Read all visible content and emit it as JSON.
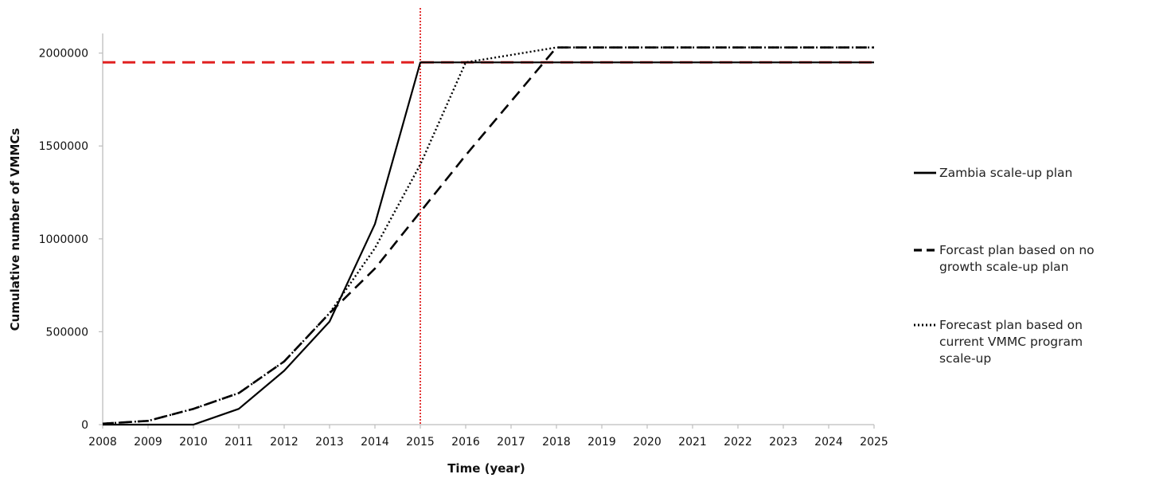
{
  "chart_data": {
    "type": "line",
    "title": "",
    "xlabel": "Time (year)",
    "ylabel": "Cumulative number of VMMCs",
    "x": [
      2008,
      2009,
      2010,
      2011,
      2012,
      2013,
      2014,
      2015,
      2016,
      2017,
      2018,
      2019,
      2020,
      2021,
      2022,
      2023,
      2024,
      2025
    ],
    "xlim": [
      2008,
      2025
    ],
    "ylim": [
      0,
      2200000
    ],
    "yticks": [
      0,
      500000,
      1000000,
      1500000,
      2000000
    ],
    "ytick_labels": [
      "0",
      "500000",
      "1000000",
      "1500000",
      "2000000"
    ],
    "xtick_labels": [
      "2008",
      "2009",
      "2010",
      "2011",
      "2012",
      "2013",
      "2014",
      "2015",
      "2016",
      "2017",
      "2018",
      "2019",
      "2020",
      "2021",
      "2022",
      "2023",
      "2024",
      "2025"
    ],
    "grid": false,
    "legend_position": "right",
    "series": [
      {
        "name": "Zambia scale-up plan",
        "style": "solid",
        "color": "#000000",
        "points": [
          [
            2008,
            0
          ],
          [
            2009,
            0
          ],
          [
            2010,
            0
          ],
          [
            2011,
            85000
          ],
          [
            2012,
            290000
          ],
          [
            2013,
            555000
          ],
          [
            2014,
            1080000
          ],
          [
            2015,
            1950000
          ],
          [
            2016,
            1950000
          ],
          [
            2017,
            1950000
          ],
          [
            2018,
            1950000
          ],
          [
            2019,
            1950000
          ],
          [
            2020,
            1950000
          ],
          [
            2021,
            1950000
          ],
          [
            2022,
            1950000
          ],
          [
            2023,
            1950000
          ],
          [
            2024,
            1950000
          ],
          [
            2025,
            1950000
          ]
        ]
      },
      {
        "name": "Forcast plan based on no growth scale-up plan",
        "legend_lines": [
          "Forcast plan based on no",
          "growth scale-up plan"
        ],
        "style": "dashed",
        "color": "#000000",
        "points": [
          [
            2008,
            5000
          ],
          [
            2009,
            20000
          ],
          [
            2010,
            85000
          ],
          [
            2011,
            170000
          ],
          [
            2012,
            340000
          ],
          [
            2013,
            600000
          ],
          [
            2014,
            840000
          ],
          [
            2015,
            1145000
          ],
          [
            2016,
            1450000
          ],
          [
            2017,
            1740000
          ],
          [
            2018,
            2030000
          ],
          [
            2019,
            2030000
          ],
          [
            2020,
            2030000
          ],
          [
            2021,
            2030000
          ],
          [
            2022,
            2030000
          ],
          [
            2023,
            2030000
          ],
          [
            2024,
            2030000
          ],
          [
            2025,
            2030000
          ]
        ]
      },
      {
        "name": "Forecast plan based on current VMMC program scale-up",
        "legend_lines": [
          "Forecast plan based on",
          "current VMMC program",
          "scale-up"
        ],
        "style": "dotted",
        "color": "#000000",
        "points": [
          [
            2008,
            5000
          ],
          [
            2009,
            20000
          ],
          [
            2010,
            85000
          ],
          [
            2011,
            170000
          ],
          [
            2012,
            340000
          ],
          [
            2013,
            600000
          ],
          [
            2014,
            950000
          ],
          [
            2015,
            1400000
          ],
          [
            2016,
            1950000
          ],
          [
            2017,
            1990000
          ],
          [
            2018,
            2030000
          ],
          [
            2019,
            2030000
          ],
          [
            2020,
            2030000
          ],
          [
            2021,
            2030000
          ],
          [
            2022,
            2030000
          ],
          [
            2023,
            2030000
          ],
          [
            2024,
            2030000
          ],
          [
            2025,
            2030000
          ]
        ]
      }
    ],
    "reference_lines": [
      {
        "orientation": "horizontal",
        "value": 1950000,
        "color": "#e02020",
        "style": "dashed"
      },
      {
        "orientation": "vertical",
        "value": 2015,
        "color": "#e02020",
        "style": "dotted"
      }
    ]
  }
}
